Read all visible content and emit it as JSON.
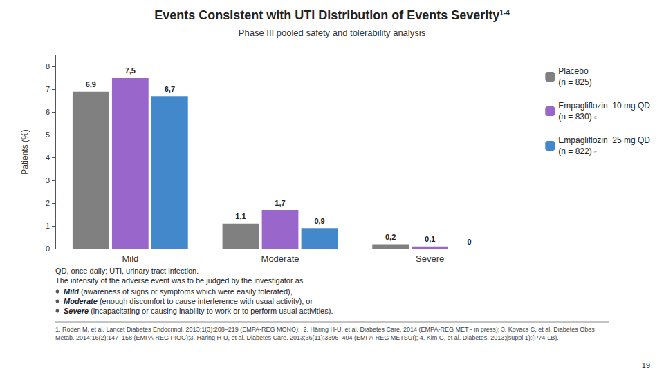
{
  "chart_data": {
    "type": "bar",
    "title": "Events Consistent with UTI Distribution of Events Severity",
    "title_superscript": "1-4",
    "subtitle": "Phase III pooled safety and tolerability analysis",
    "categories": [
      "Mild",
      "Moderate",
      "Severe"
    ],
    "series": [
      {
        "name": "Placebo\n(n = 825)",
        "color": "#808080",
        "values": [
          6.9,
          1.1,
          0.2
        ],
        "value_labels": [
          "6,9",
          "1,1",
          "0,2"
        ]
      },
      {
        "name": "Empagliflozin  10 mg QD\n(n = 830)",
        "color": "#9966CC",
        "values": [
          7.5,
          1.7,
          0.1
        ],
        "value_labels": [
          "7,5",
          "1,7",
          "0,1"
        ],
        "note": "e"
      },
      {
        "name": "Empagliflozin  25 mg QD\n(n = 822)",
        "color": "#4488CC",
        "values": [
          6.7,
          0.9,
          0.0
        ],
        "value_labels": [
          "6,7",
          "0,9",
          "0"
        ],
        "note": "e"
      }
    ],
    "ylabel": "Patients (%)",
    "ylim": [
      0,
      8.5
    ],
    "yticks": [
      0,
      1,
      2,
      3,
      4,
      5,
      6,
      7,
      8
    ],
    "grid": false,
    "legend": "right",
    "data_labels": true,
    "footnote_lines": [
      "QD, once daily; UTI, urinary tract infection.",
      "The intensity of the adverse event was to be judged by the investigator as"
    ],
    "footnote_bullets": [
      [
        "Mild",
        " (awareness of signs or symptoms which were easily tolerated),"
      ],
      [
        "Moderate",
        " (enough discomfort to cause interference with usual activity), or"
      ],
      [
        "Severe",
        " (incapacitating or causing inability to work or to perform usual activities)."
      ]
    ],
    "ref_text": "1. Roden M, et al. Lancet Diabetes Endocrinol. 2013;1(3):208–219 (EMPA-REG MONO);  2. Häring H-U, et al. Diabetes Care. 2014 (EMPA-REG MET - in press); 3. Kovacs C, et al. Diabetes Obes Metab. 2014;16(2):147–158 (EMPA-REG PIOG);3. Häring H-U, et al. Diabetes Care. 2013;36(11):3396–404 (EMPA-REG METSUI); 4. Kim G, et al. Diabetes. 2013;(suppl 1):(P74-LB).",
    "page_number": "19"
  }
}
